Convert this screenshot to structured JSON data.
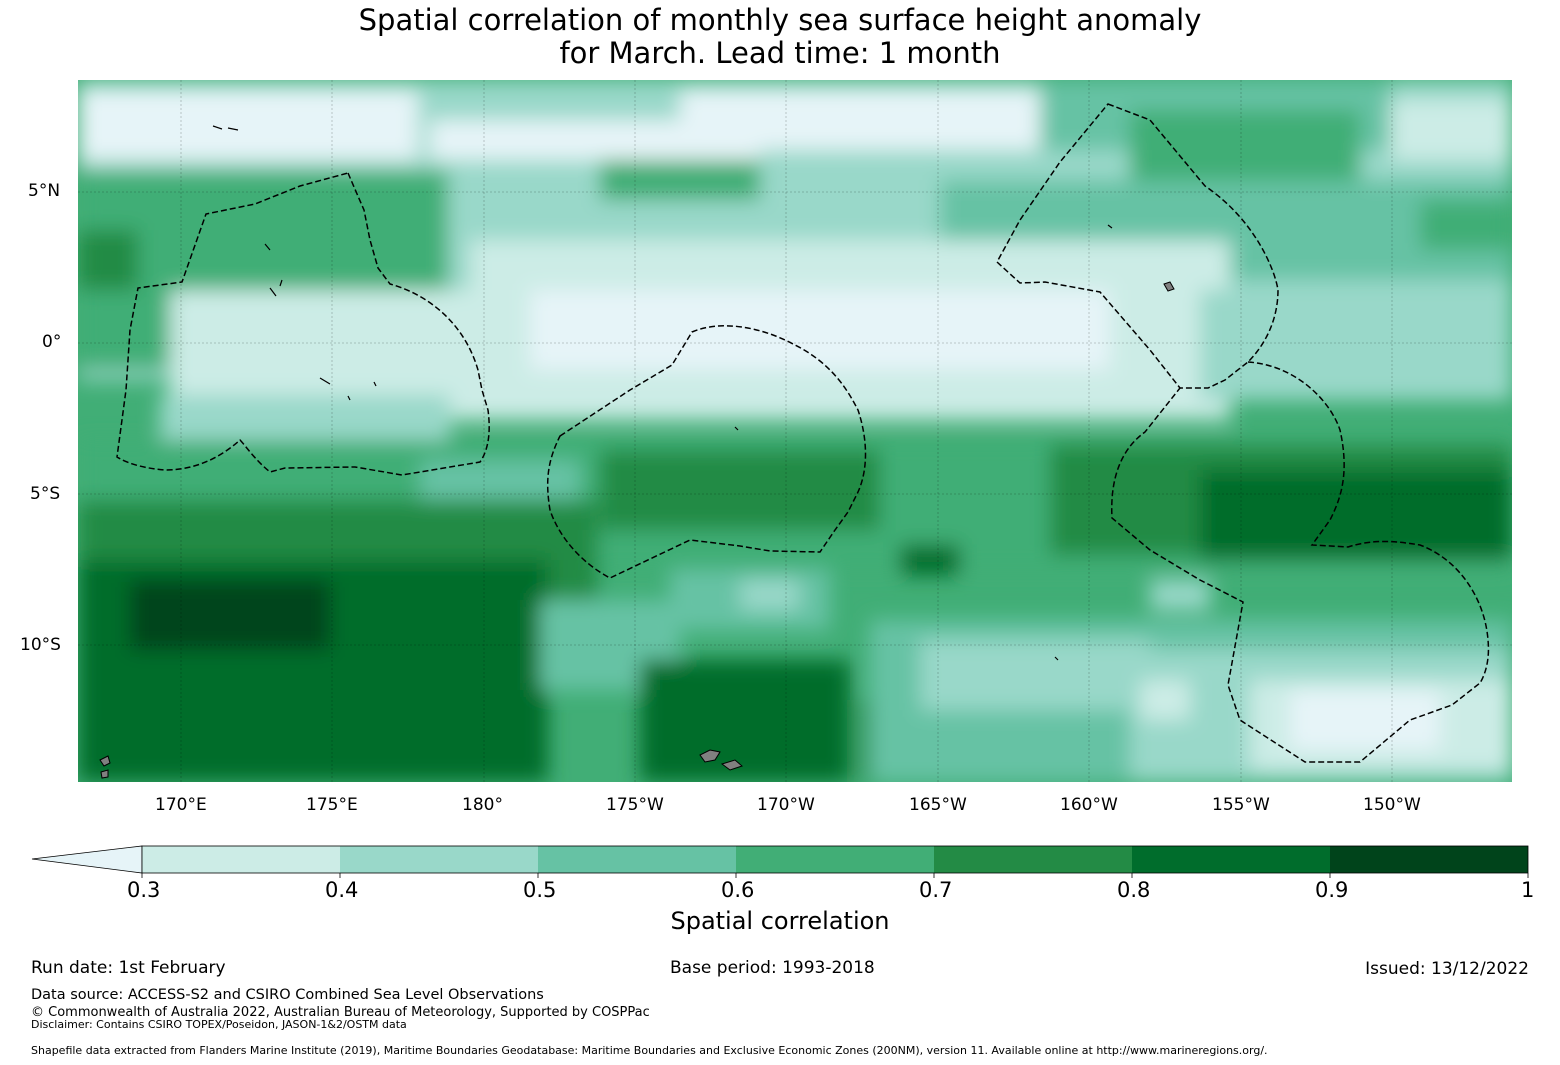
{
  "title": {
    "line1": "Spatial correlation of monthly sea surface height anomaly",
    "line2": "for March. Lead time: 1 month"
  },
  "map": {
    "lat_labels": [
      "5°N",
      "0°",
      "5°S",
      "10°S"
    ],
    "lon_labels": [
      "170°E",
      "175°E",
      "180°",
      "175°W",
      "170°W",
      "165°W",
      "160°W",
      "155°W",
      "150°W"
    ],
    "palette": {
      "lt03": "#e6f4f8",
      "b0304": "#ccece6",
      "b0405": "#99d8c9",
      "b0506": "#66c2a4",
      "b0607": "#41ae76",
      "b0708": "#238b45",
      "b0809": "#006d2c",
      "b0910": "#00441b",
      "land": "#808080"
    }
  },
  "colorbar": {
    "ticks": [
      "0.3",
      "0.4",
      "0.5",
      "0.6",
      "0.7",
      "0.8",
      "0.9",
      "1"
    ],
    "label": "Spatial correlation"
  },
  "footer": {
    "run_date": "Run date: 1st February",
    "base_period": "Base period: 1993-2018",
    "issued": "Issued: 13/12/2022",
    "data_source": "Data source: ACCESS-S2 and CSIRO Combined Sea Level Observations",
    "copyright": "© Commonwealth of Australia 2022, Australian Bureau of Meteorology, Supported by COSPPac",
    "disclaimer": "Disclaimer: Contains CSIRO TOPEX/Poseidon, JASON-1&2/OSTM data",
    "shapefile": "Shapefile data extracted from Flanders Marine Institute (2019), Maritime Boundaries Geodatabase: Maritime Boundaries and Exclusive Economic Zones (200NM), version 11. Available online at http://www.marineregions.org/."
  }
}
